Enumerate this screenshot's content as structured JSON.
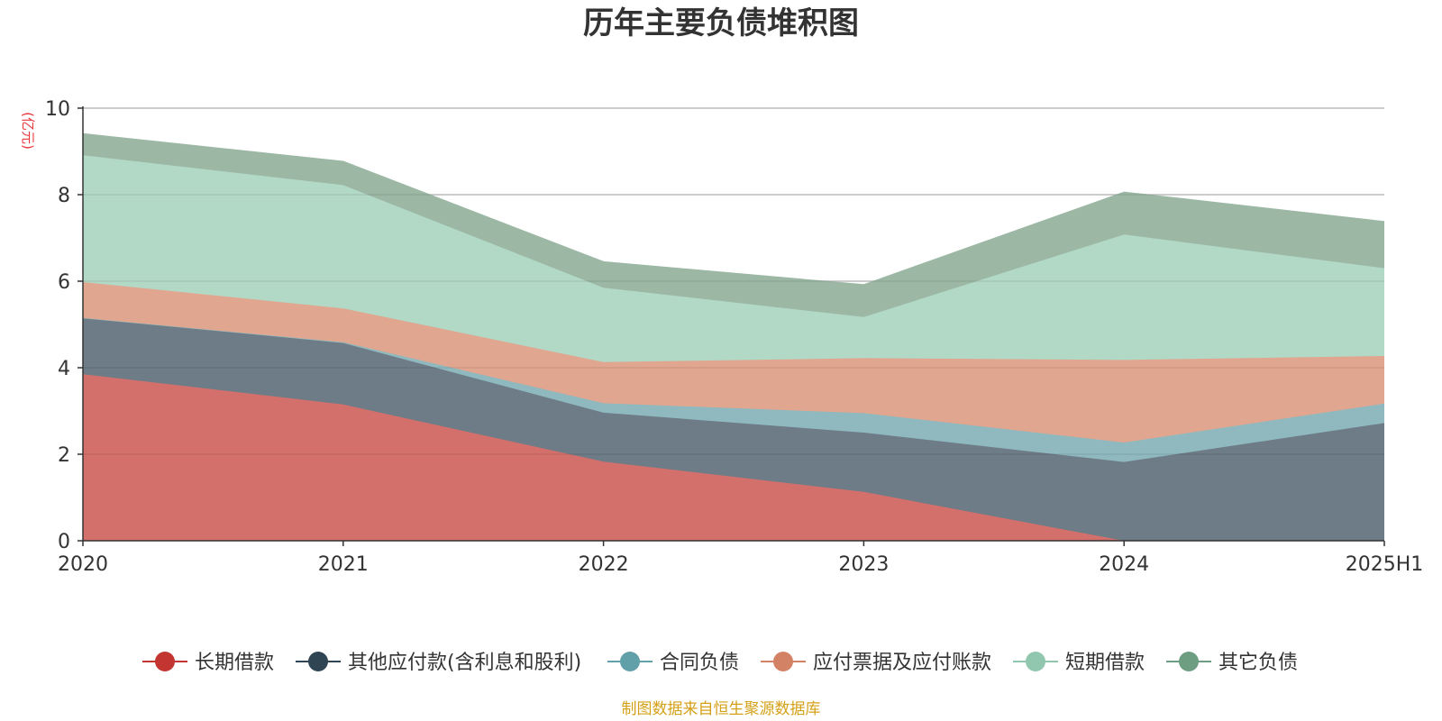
{
  "chart_data": {
    "type": "area",
    "stacked": true,
    "title": "历年主要负债堆积图",
    "unit_label": "(亿元)",
    "x": [
      "2020",
      "2021",
      "2022",
      "2023",
      "2024",
      "2025H1"
    ],
    "ylim": [
      0,
      10
    ],
    "yticks": [
      0,
      2,
      4,
      6,
      8,
      10
    ],
    "grid": true,
    "legend_position": "bottom",
    "series": [
      {
        "name": "长期借款",
        "color": "#c23531",
        "fill": "#d4706c",
        "values": [
          3.85,
          3.15,
          1.83,
          1.13,
          0.0,
          0.0
        ]
      },
      {
        "name": "其他应付款(含利息和股利)",
        "color": "#2f4554",
        "fill": "#6e7c87",
        "values": [
          1.3,
          1.42,
          1.13,
          1.37,
          1.82,
          2.72
        ]
      },
      {
        "name": "合同负债",
        "color": "#61a0a8",
        "fill": "#8fb9bf",
        "values": [
          0.0,
          0.02,
          0.22,
          0.45,
          0.45,
          0.45
        ]
      },
      {
        "name": "应付票据及应付账款",
        "color": "#d48265",
        "fill": "#e0a68f",
        "values": [
          0.83,
          0.78,
          0.95,
          1.27,
          1.91,
          1.1
        ]
      },
      {
        "name": "短期借款",
        "color": "#91c7ae",
        "fill": "#b2d8c6",
        "values": [
          2.93,
          2.85,
          1.72,
          0.95,
          2.9,
          2.03
        ]
      },
      {
        "name": "其它负债",
        "color": "#6e9e82",
        "fill": "#9cb8a5",
        "values": [
          0.5,
          0.55,
          0.6,
          0.75,
          0.98,
          1.08
        ]
      }
    ],
    "source": "制图数据来自恒生聚源数据库"
  }
}
